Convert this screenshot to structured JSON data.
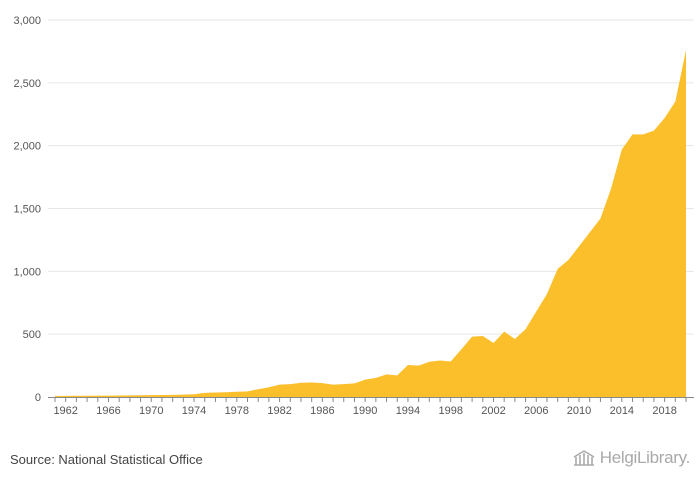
{
  "chart_data": {
    "type": "area",
    "title": "",
    "xlabel": "",
    "ylabel": "",
    "xlim": [
      1961,
      2020
    ],
    "ylim": [
      0,
      3000
    ],
    "yticks": [
      0,
      500,
      1000,
      1500,
      2000,
      2500,
      3000
    ],
    "ytick_labels": [
      "0",
      "500",
      "1,000",
      "1,500",
      "2,000",
      "2,500",
      "3,000"
    ],
    "xticks": [
      1962,
      1966,
      1970,
      1974,
      1978,
      1982,
      1986,
      1990,
      1994,
      1998,
      2002,
      2006,
      2010,
      2014,
      2018
    ],
    "xtick_labels": [
      "1962",
      "1966",
      "1970",
      "1974",
      "1978",
      "1982",
      "1986",
      "1990",
      "1994",
      "1998",
      "2002",
      "2006",
      "2010",
      "2014",
      "2018"
    ],
    "grid": true,
    "color": "#fbbf2c",
    "series": [
      {
        "x": [
          1961,
          1962,
          1963,
          1964,
          1965,
          1966,
          1967,
          1968,
          1969,
          1970,
          1971,
          1972,
          1973,
          1974,
          1975,
          1976,
          1977,
          1978,
          1979,
          1980,
          1981,
          1982,
          1983,
          1984,
          1985,
          1986,
          1987,
          1988,
          1989,
          1990,
          1991,
          1992,
          1993,
          1994,
          1995,
          1996,
          1997,
          1998,
          1999,
          2000,
          2001,
          2002,
          2003,
          2004,
          2005,
          2006,
          2007,
          2008,
          2009,
          2010,
          2011,
          2012,
          2013,
          2014,
          2015,
          2016,
          2017,
          2018,
          2019,
          2020
        ],
        "values": [
          8,
          9,
          10,
          10,
          11,
          11,
          12,
          13,
          14,
          15,
          16,
          17,
          19,
          22,
          33,
          36,
          38,
          42,
          45,
          62,
          78,
          98,
          102,
          113,
          115,
          110,
          98,
          102,
          108,
          138,
          152,
          180,
          172,
          255,
          250,
          280,
          290,
          283,
          380,
          480,
          485,
          430,
          520,
          462,
          540,
          680,
          820,
          1020,
          1090,
          1200,
          1310,
          1420,
          1660,
          1970,
          2090,
          2090,
          2120,
          2220,
          2350,
          2760
        ]
      }
    ]
  },
  "footer": {
    "source": "Source: National Statistical Office",
    "brand": "HelgiLibrary."
  },
  "colors": {
    "area": "#fbbf2c",
    "grid": "#e6e6e6",
    "axis": "#888888",
    "text": "#555555"
  }
}
